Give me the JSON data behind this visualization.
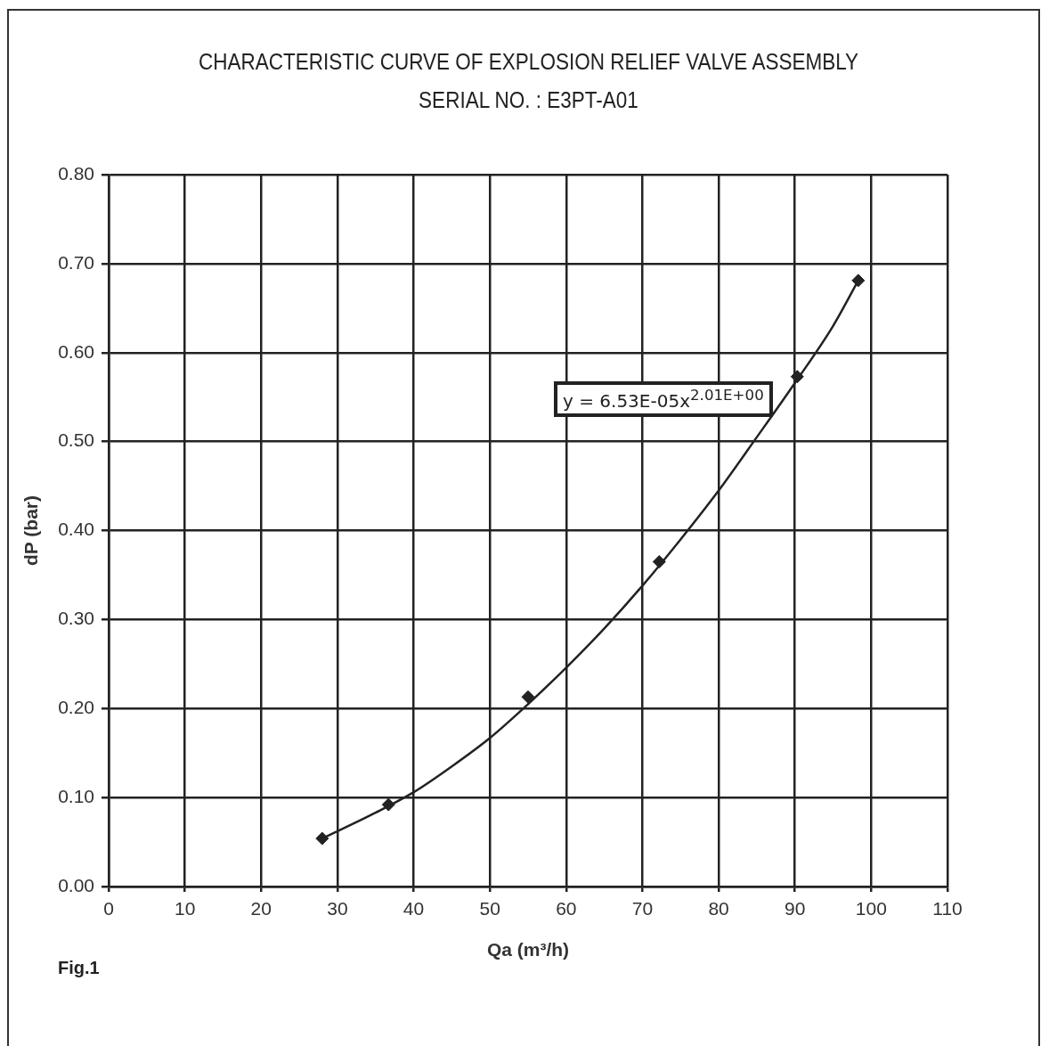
{
  "chart_data": {
    "type": "scatter",
    "title": "CHARACTERISTIC CURVE OF EXPLOSION RELIEF VALVE ASSEMBLY",
    "subtitle": "SERIAL NO. : E3PT-A01",
    "xlabel": "Qa (m³/h)",
    "ylabel": "dP (bar)",
    "annotations": [
      "y = 6.53E-05x$^{2.01E+00}$",
      "Fig.1"
    ],
    "series": [
      {
        "color": "#222222",
        "x": [
          28.0,
          36.7,
          55.0,
          72.2,
          90.3,
          98.3
        ],
        "values": [
          0.054,
          0.092,
          0.213,
          0.365,
          0.573,
          0.681
        ],
        "marker": "diamond"
      },
      {
        "type": "line",
        "color": "#222222",
        "x": [
          28,
          35,
          40,
          45,
          50,
          55,
          60,
          65,
          70,
          75,
          80,
          85,
          90,
          95,
          98.3
        ],
        "values": [
          0.054,
          0.083,
          0.106,
          0.135,
          0.167,
          0.205,
          0.246,
          0.29,
          0.338,
          0.39,
          0.445,
          0.505,
          0.566,
          0.63,
          0.681
        ],
        "marker": "none",
        "line_style": "solid"
      }
    ],
    "xlim": [
      0,
      110
    ],
    "xticks": [
      0,
      10,
      20,
      30,
      40,
      50,
      60,
      70,
      80,
      90,
      100,
      110
    ],
    "ylim": [
      0,
      0.8
    ],
    "yticks": [
      {
        "value": 0,
        "label": "0.00"
      },
      {
        "value": 0.1,
        "label": "0.10"
      },
      {
        "value": 0.2,
        "label": "0.20"
      },
      {
        "value": 0.3,
        "label": "0.30"
      },
      {
        "value": 0.4,
        "label": "0.40"
      },
      {
        "value": 0.5,
        "label": "0.50"
      },
      {
        "value": 0.6,
        "label": "0.60"
      },
      {
        "value": 0.7,
        "label": "0.70"
      },
      {
        "value": 0.8,
        "label": "0.80"
      }
    ],
    "grid": true
  }
}
